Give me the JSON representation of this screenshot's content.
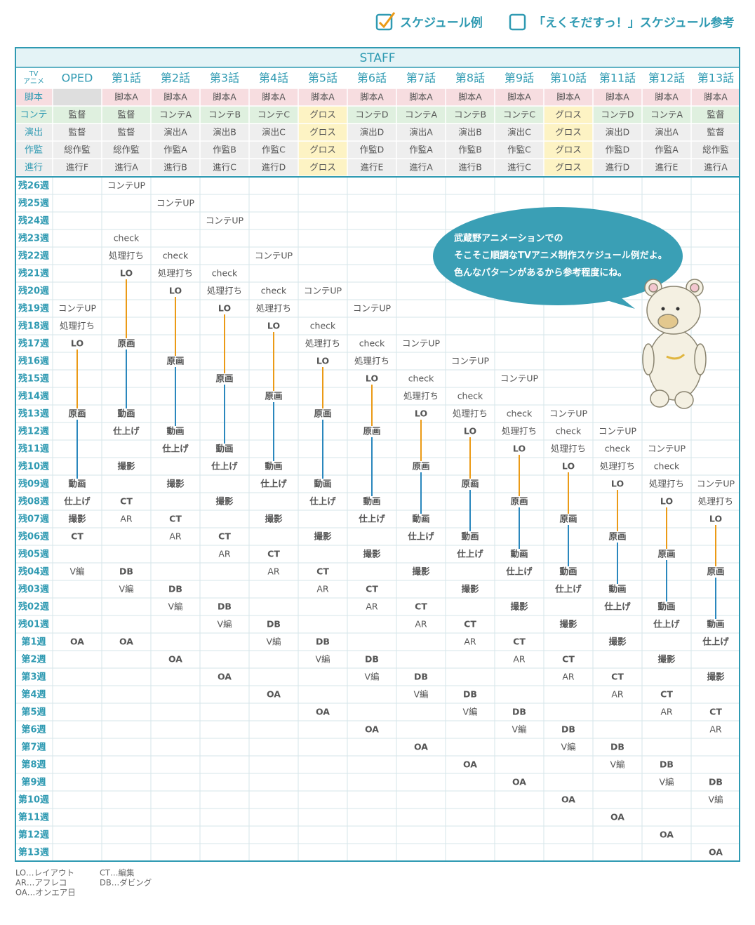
{
  "options": [
    {
      "label": "スケジュール例",
      "checked": true
    },
    {
      "label": "「えくそだすっ！」スケジュール参考",
      "checked": false
    }
  ],
  "table": {
    "title": "STAFF",
    "corner": [
      "TV",
      "アニメ"
    ],
    "columns": [
      "OPED",
      "第1話",
      "第2話",
      "第3話",
      "第4話",
      "第5話",
      "第6話",
      "第7話",
      "第8話",
      "第9話",
      "第10話",
      "第11話",
      "第12話",
      "第13話"
    ],
    "staff": [
      {
        "role": "脚本",
        "bg": "#f7dde0",
        "cells": [
          null,
          "脚本A",
          "脚本A",
          "脚本A",
          "脚本A",
          "脚本A",
          "脚本A",
          "脚本A",
          "脚本A",
          "脚本A",
          "脚本A",
          "脚本A",
          "脚本A",
          "脚本A"
        ]
      },
      {
        "role": "コンテ",
        "bg": "#dff0df",
        "cells": [
          "監督",
          "監督",
          "コンテA",
          "コンテB",
          "コンテC",
          "グロス",
          "コンテD",
          "コンテA",
          "コンテB",
          "コンテC",
          "グロス",
          "コンテD",
          "コンテA",
          "監督"
        ]
      },
      {
        "role": "演出",
        "bg": "#eeeeee",
        "cells": [
          "監督",
          "監督",
          "演出A",
          "演出B",
          "演出C",
          "グロス",
          "演出D",
          "演出A",
          "演出B",
          "演出C",
          "グロス",
          "演出D",
          "演出A",
          "監督"
        ]
      },
      {
        "role": "作監",
        "bg": "#eeeeee",
        "cells": [
          "総作監",
          "総作監",
          "作監A",
          "作監B",
          "作監C",
          "グロス",
          "作監D",
          "作監A",
          "作監B",
          "作監C",
          "グロス",
          "作監D",
          "作監A",
          "総作監"
        ]
      },
      {
        "role": "進行",
        "bg": "#eeeeee",
        "cells": [
          "進行F",
          "進行A",
          "進行B",
          "進行C",
          "進行D",
          "グロス",
          "進行E",
          "進行A",
          "進行B",
          "進行C",
          "グロス",
          "進行D",
          "進行E",
          "進行A"
        ]
      }
    ],
    "weeks": [
      {
        "label": "残26週",
        "cells": [
          null,
          "コンテUP",
          null,
          null,
          null,
          null,
          null,
          null,
          null,
          null,
          null,
          null,
          null,
          null
        ]
      },
      {
        "label": "残25週",
        "cells": [
          null,
          null,
          "コンテUP",
          null,
          null,
          null,
          null,
          null,
          null,
          null,
          null,
          null,
          null,
          null
        ]
      },
      {
        "label": "残24週",
        "cells": [
          null,
          null,
          null,
          "コンテUP",
          null,
          null,
          null,
          null,
          null,
          null,
          null,
          null,
          null,
          null
        ]
      },
      {
        "label": "残23週",
        "cells": [
          null,
          "check",
          null,
          null,
          null,
          null,
          null,
          null,
          null,
          null,
          null,
          null,
          null,
          null
        ]
      },
      {
        "label": "残22週",
        "cells": [
          null,
          "処理打ち",
          "check",
          null,
          "コンテUP",
          null,
          null,
          null,
          null,
          null,
          null,
          null,
          null,
          null
        ]
      },
      {
        "label": "残21週",
        "cells": [
          null,
          "LO",
          "処理打ち",
          "check",
          null,
          null,
          null,
          null,
          null,
          null,
          null,
          null,
          null,
          null
        ]
      },
      {
        "label": "残20週",
        "cells": [
          null,
          null,
          "LO",
          "処理打ち",
          "check",
          "コンテUP",
          null,
          null,
          null,
          null,
          null,
          null,
          null,
          null
        ]
      },
      {
        "label": "残19週",
        "cells": [
          "コンテUP",
          null,
          null,
          "LO",
          "処理打ち",
          null,
          "コンテUP",
          null,
          null,
          null,
          null,
          null,
          null,
          null
        ]
      },
      {
        "label": "残18週",
        "cells": [
          "処理打ち",
          null,
          null,
          null,
          "LO",
          "check",
          null,
          null,
          null,
          null,
          null,
          null,
          null,
          null
        ]
      },
      {
        "label": "残17週",
        "cells": [
          "LO",
          "原画",
          null,
          null,
          null,
          "処理打ち",
          "check",
          "コンテUP",
          null,
          null,
          null,
          null,
          null,
          null
        ]
      },
      {
        "label": "残16週",
        "cells": [
          null,
          null,
          "原画",
          null,
          null,
          "LO",
          "処理打ち",
          null,
          "コンテUP",
          null,
          null,
          null,
          null,
          null
        ]
      },
      {
        "label": "残15週",
        "cells": [
          null,
          null,
          null,
          "原画",
          null,
          null,
          "LO",
          "check",
          null,
          "コンテUP",
          null,
          null,
          null,
          null
        ]
      },
      {
        "label": "残14週",
        "cells": [
          null,
          null,
          null,
          null,
          "原画",
          null,
          null,
          "処理打ち",
          "check",
          null,
          null,
          null,
          null,
          null
        ]
      },
      {
        "label": "残13週",
        "cells": [
          "原画",
          "動画",
          null,
          null,
          null,
          "原画",
          null,
          "LO",
          "処理打ち",
          "check",
          "コンテUP",
          null,
          null,
          null
        ]
      },
      {
        "label": "残12週",
        "cells": [
          null,
          "仕上げ",
          "動画",
          null,
          null,
          null,
          "原画",
          null,
          "LO",
          "処理打ち",
          "check",
          "コンテUP",
          null,
          null
        ]
      },
      {
        "label": "残11週",
        "cells": [
          null,
          null,
          "仕上げ",
          "動画",
          null,
          null,
          null,
          null,
          null,
          "LO",
          "処理打ち",
          "check",
          "コンテUP",
          null
        ]
      },
      {
        "label": "残10週",
        "cells": [
          null,
          "撮影",
          null,
          "仕上げ",
          "動画",
          null,
          null,
          "原画",
          null,
          null,
          "LO",
          "処理打ち",
          "check",
          null
        ]
      },
      {
        "label": "残09週",
        "cells": [
          "動画",
          null,
          "撮影",
          null,
          "仕上げ",
          "動画",
          null,
          null,
          "原画",
          null,
          null,
          "LO",
          "処理打ち",
          "コンテUP"
        ]
      },
      {
        "label": "残08週",
        "cells": [
          "仕上げ",
          "CT",
          null,
          "撮影",
          null,
          "仕上げ",
          "動画",
          null,
          null,
          "原画",
          null,
          null,
          "LO",
          "処理打ち"
        ]
      },
      {
        "label": "残07週",
        "cells": [
          "撮影",
          "AR",
          "CT",
          null,
          "撮影",
          null,
          "仕上げ",
          "動画",
          null,
          null,
          "原画",
          null,
          null,
          "LO"
        ]
      },
      {
        "label": "残06週",
        "cells": [
          "CT",
          null,
          "AR",
          "CT",
          null,
          "撮影",
          null,
          "仕上げ",
          "動画",
          null,
          null,
          "原画",
          null,
          null
        ]
      },
      {
        "label": "残05週",
        "cells": [
          null,
          null,
          null,
          "AR",
          "CT",
          null,
          "撮影",
          null,
          "仕上げ",
          "動画",
          null,
          null,
          "原画",
          null
        ]
      },
      {
        "label": "残04週",
        "cells": [
          "V編",
          "DB",
          null,
          null,
          "AR",
          "CT",
          null,
          "撮影",
          null,
          "仕上げ",
          "動画",
          null,
          null,
          "原画"
        ]
      },
      {
        "label": "残03週",
        "cells": [
          null,
          "V編",
          "DB",
          null,
          null,
          "AR",
          "CT",
          null,
          "撮影",
          null,
          "仕上げ",
          "動画",
          null,
          null
        ]
      },
      {
        "label": "残02週",
        "cells": [
          null,
          null,
          "V編",
          "DB",
          null,
          null,
          "AR",
          "CT",
          null,
          "撮影",
          null,
          "仕上げ",
          "動画",
          null
        ]
      },
      {
        "label": "残01週",
        "cells": [
          null,
          null,
          null,
          "V編",
          "DB",
          null,
          null,
          "AR",
          "CT",
          null,
          "撮影",
          null,
          "仕上げ",
          "動画"
        ]
      },
      {
        "label": "第1週",
        "cells": [
          "OA",
          "OA",
          null,
          null,
          "V編",
          "DB",
          null,
          null,
          "AR",
          "CT",
          null,
          "撮影",
          null,
          "仕上げ"
        ]
      },
      {
        "label": "第2週",
        "cells": [
          null,
          null,
          "OA",
          null,
          null,
          "V編",
          "DB",
          null,
          null,
          "AR",
          "CT",
          null,
          "撮影",
          null
        ]
      },
      {
        "label": "第3週",
        "cells": [
          null,
          null,
          null,
          "OA",
          null,
          null,
          "V編",
          "DB",
          null,
          null,
          "AR",
          "CT",
          null,
          "撮影"
        ]
      },
      {
        "label": "第4週",
        "cells": [
          null,
          null,
          null,
          null,
          "OA",
          null,
          null,
          "V編",
          "DB",
          null,
          null,
          "AR",
          "CT",
          null
        ]
      },
      {
        "label": "第5週",
        "cells": [
          null,
          null,
          null,
          null,
          null,
          "OA",
          null,
          null,
          "V編",
          "DB",
          null,
          null,
          "AR",
          "CT"
        ]
      },
      {
        "label": "第6週",
        "cells": [
          null,
          null,
          null,
          null,
          null,
          null,
          "OA",
          null,
          null,
          "V編",
          "DB",
          null,
          null,
          "AR"
        ]
      },
      {
        "label": "第7週",
        "cells": [
          null,
          null,
          null,
          null,
          null,
          null,
          null,
          "OA",
          null,
          null,
          "V編",
          "DB",
          null,
          null
        ]
      },
      {
        "label": "第8週",
        "cells": [
          null,
          null,
          null,
          null,
          null,
          null,
          null,
          null,
          "OA",
          null,
          null,
          "V編",
          "DB",
          null
        ]
      },
      {
        "label": "第9週",
        "cells": [
          null,
          null,
          null,
          null,
          null,
          null,
          null,
          null,
          null,
          "OA",
          null,
          null,
          "V編",
          "DB"
        ]
      },
      {
        "label": "第10週",
        "cells": [
          null,
          null,
          null,
          null,
          null,
          null,
          null,
          null,
          null,
          null,
          "OA",
          null,
          null,
          "V編"
        ]
      },
      {
        "label": "第11週",
        "cells": [
          null,
          null,
          null,
          null,
          null,
          null,
          null,
          null,
          null,
          null,
          null,
          "OA",
          null,
          null
        ]
      },
      {
        "label": "第12週",
        "cells": [
          null,
          null,
          null,
          null,
          null,
          null,
          null,
          null,
          null,
          null,
          null,
          null,
          "OA",
          null
        ]
      },
      {
        "label": "第13週",
        "cells": [
          null,
          null,
          null,
          null,
          null,
          null,
          null,
          null,
          null,
          null,
          null,
          null,
          null,
          "OA"
        ]
      }
    ]
  },
  "styles": {
    "LO": {
      "color": "#eb9a16",
      "link": true
    },
    "原画": {
      "color": "#2a87bd",
      "link": true
    },
    "動画": {
      "color": "#2aa54a"
    },
    "仕上げ": {
      "color": "#2aa54a"
    },
    "撮影": {
      "color": "#ee6fa0"
    },
    "CT": {
      "color": "#e8501e"
    },
    "DB": {
      "color": "#e8501e"
    },
    "OA": {
      "color": "#e01010"
    },
    "グロス": {
      "bg": "#fdf3c4"
    }
  },
  "bubble": [
    "武蔵野アニメーションでの",
    "そこそこ順調なTVアニメ制作スケジュール例だよ。",
    "色んなパターンがあるから参考程度にね。"
  ],
  "notes": [
    "LO…レイアウト",
    "CT…編集",
    "AR…アフレコ",
    "DB…ダビング",
    "OA…オンエア日"
  ]
}
